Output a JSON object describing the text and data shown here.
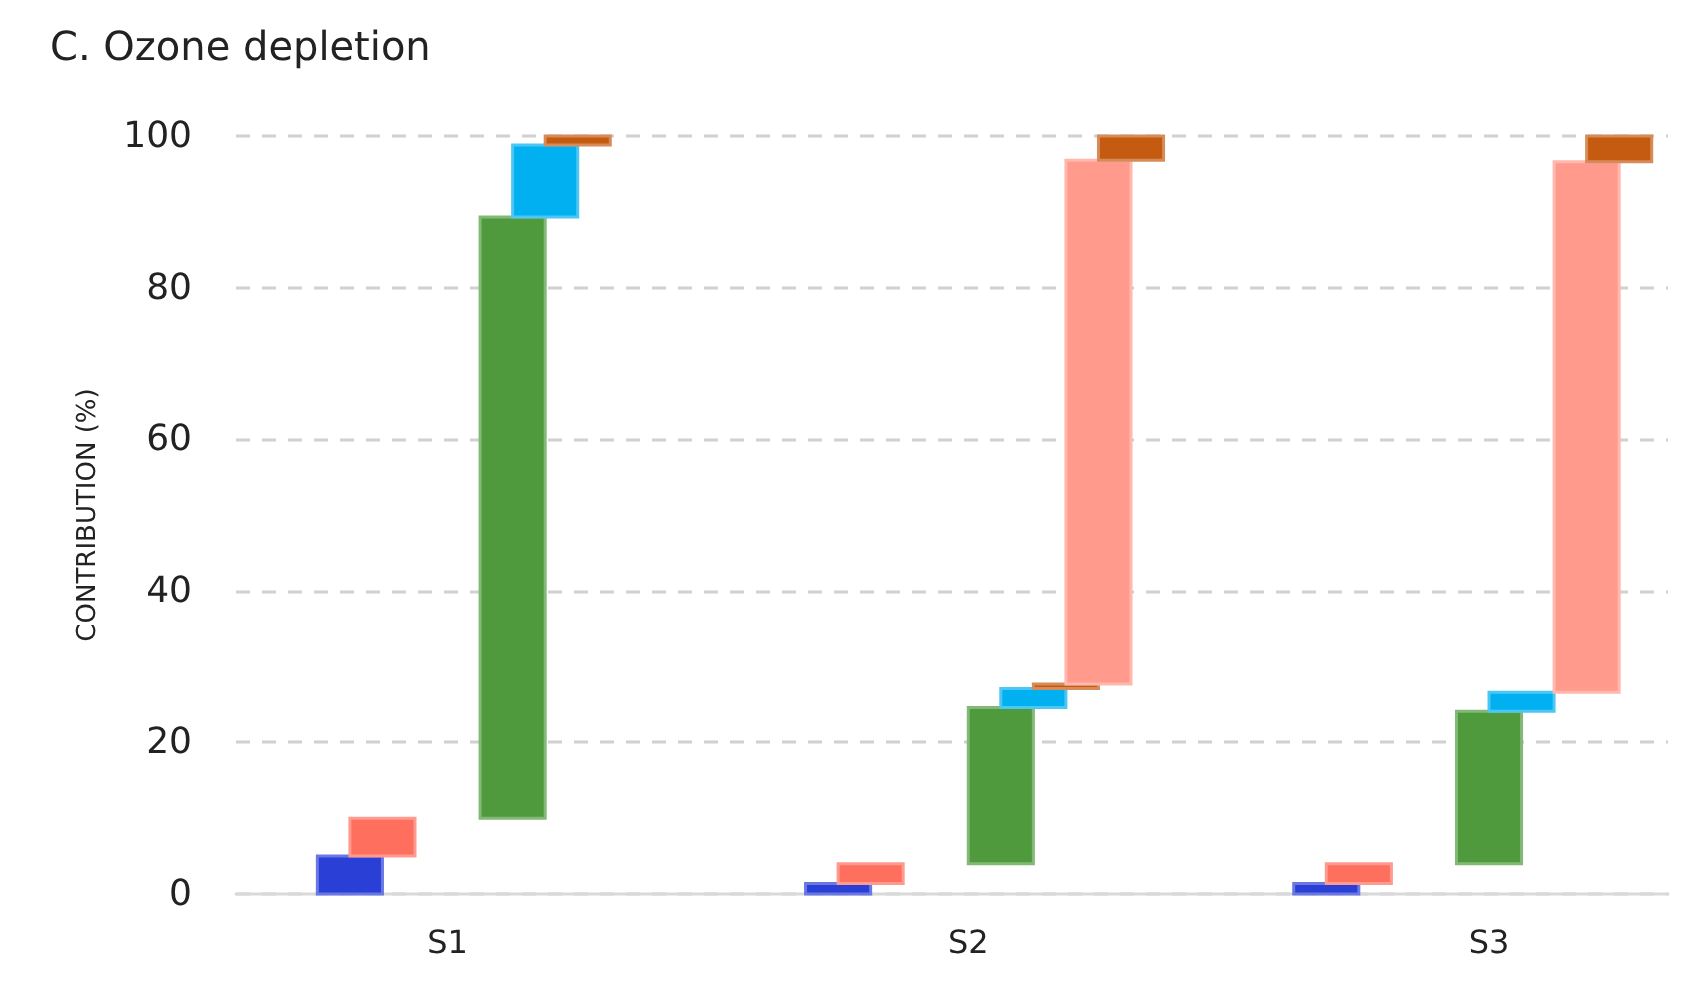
{
  "chart_data": {
    "type": "bar",
    "title": "C. Ozone depletion",
    "ylabel": "CONTRIBUTION (%)",
    "categories": [
      null,
      null,
      null,
      null,
      null,
      null,
      "S1",
      null,
      null,
      null,
      null,
      null,
      null,
      null,
      null,
      null,
      null,
      null,
      null,
      null,
      null,
      null,
      "S2",
      null,
      null,
      null,
      null,
      null,
      null,
      null,
      null,
      null,
      null,
      null,
      null,
      null,
      null,
      null,
      "S3",
      null,
      null,
      null,
      null,
      null
    ],
    "values": [
      null,
      null,
      null,
      5,
      5,
      null,
      null,
      null,
      79.3,
      9.5,
      1.2,
      null,
      null,
      null,
      null,
      null,
      null,
      null,
      1.4,
      2.6,
      null,
      null,
      null,
      20.6,
      2.5,
      0.6,
      69.1,
      3.2,
      null,
      null,
      null,
      null,
      null,
      1.4,
      2.6,
      null,
      null,
      null,
      20.1,
      2.5,
      null,
      70,
      3.4,
      null
    ],
    "base": [
      null,
      null,
      null,
      0,
      5,
      null,
      null,
      null,
      10,
      89.3,
      98.8,
      null,
      null,
      null,
      null,
      null,
      null,
      null,
      0,
      1.4,
      null,
      null,
      null,
      4,
      24.6,
      27.1,
      27.7,
      96.8,
      null,
      null,
      null,
      null,
      null,
      0,
      1.4,
      null,
      null,
      null,
      4,
      24.1,
      null,
      26.6,
      96.6,
      null
    ],
    "colors": [
      null,
      null,
      null,
      "#2a3fd6",
      "#ff6f5e",
      null,
      null,
      null,
      "#4f9a3c",
      "#00b0f0",
      "#c55a11",
      null,
      null,
      null,
      null,
      null,
      null,
      null,
      "#2a3fd6",
      "#ff6f5e",
      null,
      null,
      null,
      "#4f9a3c",
      "#00b0f0",
      "#c55a11",
      "#ff9a8c",
      "#c55a11",
      null,
      null,
      null,
      null,
      null,
      "#2a3fd6",
      "#ff6f5e",
      null,
      null,
      null,
      "#4f9a3c",
      "#00b0f0",
      null,
      "#ff9a8c",
      "#c55a11",
      null
    ],
    "ylim": [
      0,
      100
    ],
    "yticks": [
      0,
      20,
      40,
      60,
      80,
      100
    ],
    "grid": "y"
  }
}
